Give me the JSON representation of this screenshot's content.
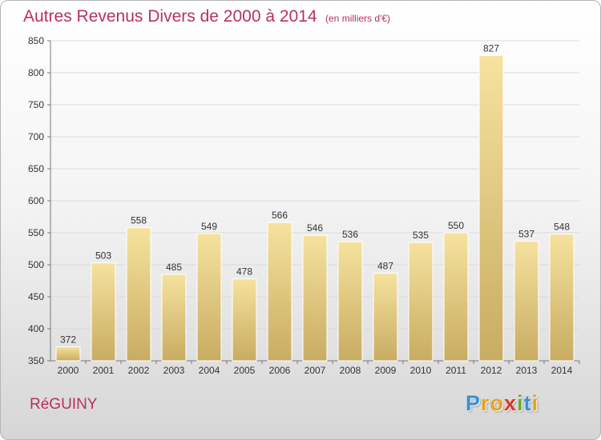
{
  "title": "Autres Revenus Divers de 2000 à 2014",
  "unit": "(en milliers d'€)",
  "commune": "RéGUINY",
  "logo": {
    "letters": [
      "P",
      "r",
      "o",
      "x",
      "i",
      "t",
      "i"
    ],
    "colors": [
      "#3b8fd6",
      "#e8a21c",
      "#e8a21c",
      "#d83a2b",
      "#6aae2b",
      "#3b8fd6",
      "#e8a21c"
    ]
  },
  "colors": {
    "accent": "#b8325a",
    "bar_light": "#f6e29e",
    "bar_dark": "#c8ac62"
  },
  "chart_data": {
    "type": "bar",
    "title": "Autres Revenus Divers de 2000 à 2014",
    "xlabel": "",
    "ylabel": "",
    "categories": [
      "2000",
      "2001",
      "2002",
      "2003",
      "2004",
      "2005",
      "2006",
      "2007",
      "2008",
      "2009",
      "2010",
      "2011",
      "2012",
      "2013",
      "2014"
    ],
    "values": [
      372,
      503,
      558,
      485,
      549,
      478,
      566,
      546,
      536,
      487,
      535,
      550,
      827,
      537,
      548
    ],
    "ylim": [
      350,
      850
    ],
    "yticks": [
      350,
      400,
      450,
      500,
      550,
      600,
      650,
      700,
      750,
      800,
      850
    ],
    "grid": true,
    "data_labels": true
  }
}
